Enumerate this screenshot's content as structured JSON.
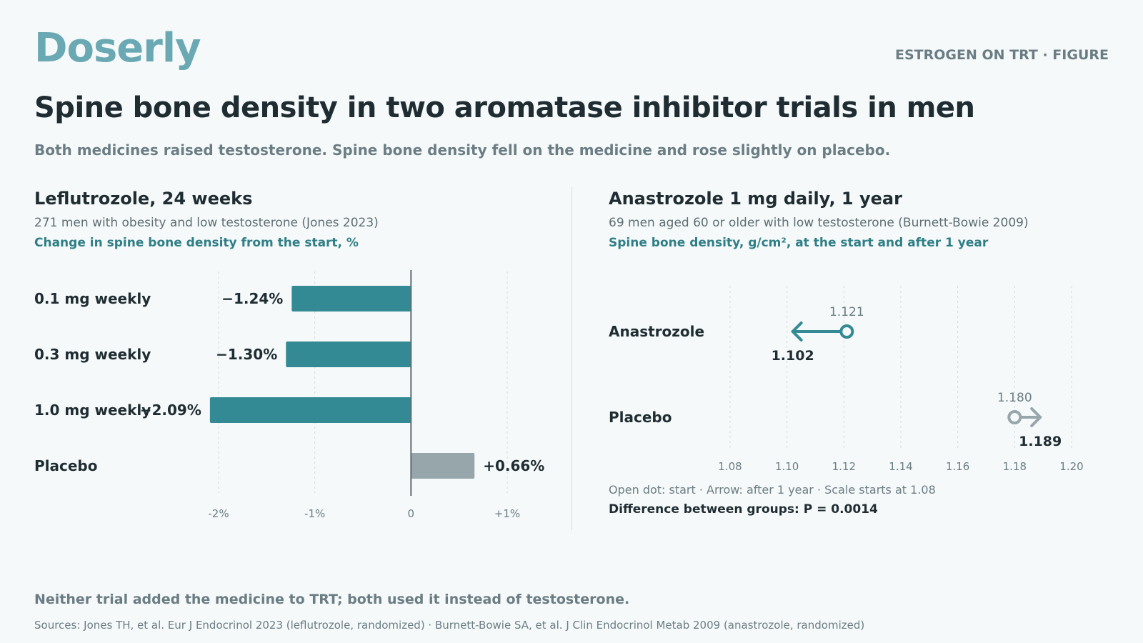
{
  "brand": {
    "logo": "Doserly",
    "tag": "ESTROGEN ON TRT · FIGURE"
  },
  "header": {
    "title": "Spine bone density in two aromatase inhibitor trials in men",
    "subtitle": "Both medicines raised testosterone. Spine bone density fell on the medicine and rose slightly on placebo."
  },
  "left_panel": {
    "title": "Leflutrozole, 24 weeks",
    "description": "271 men with obesity and low testosterone (Jones 2023)",
    "measure": "Change in spine bone density from the start, %"
  },
  "right_panel": {
    "title": "Anastrozole 1 mg daily, 1 year",
    "description": "69 men aged 60 or older with low testosterone (Burnett-Bowie 2009)",
    "measure": "Spine bone density, g/cm², at the start and after 1 year",
    "note": "Open dot: start · Arrow: after 1 year · Scale starts at 1.08",
    "pvalue": "Difference between groups: P = 0.0014"
  },
  "footer": {
    "note": "Neither trial added the medicine to TRT; both used it instead of testosterone.",
    "sources": "Sources: Jones TH, et al. Eur J Endocrinol 2023 (leflutrozole, randomized) · Burnett-Bowie SA, et al. J Clin Endocrinol Metab 2009 (anastrozole, randomized)"
  },
  "colors": {
    "drug": "#338a94",
    "placebo": "#96a6ab",
    "accent": "#2f7e86",
    "logo": "#6aa9b3"
  },
  "chart_data": [
    {
      "type": "bar",
      "orientation": "horizontal",
      "categories": [
        "0.1 mg weekly",
        "0.3 mg weekly",
        "1.0 mg weekly",
        "Placebo"
      ],
      "values": [
        -1.24,
        -1.3,
        -2.09,
        0.66
      ],
      "labels": [
        "−1.24%",
        "−1.30%",
        "−2.09%",
        "+0.66%"
      ],
      "xlim": [
        -2.0,
        1.0
      ],
      "ticks": [
        -2,
        -1,
        0,
        1
      ],
      "tick_labels": [
        "-2%",
        "-1%",
        "0",
        "+1%"
      ],
      "grid": true
    },
    {
      "type": "dumbbell",
      "categories": [
        "Anastrozole",
        "Placebo"
      ],
      "start": [
        1.121,
        1.18
      ],
      "end": [
        1.102,
        1.189
      ],
      "start_labels": [
        "1.121",
        "1.180"
      ],
      "end_labels": [
        "1.102",
        "1.189"
      ],
      "xlim": [
        1.08,
        1.2
      ],
      "ticks": [
        1.08,
        1.1,
        1.12,
        1.14,
        1.16,
        1.18,
        1.2
      ],
      "tick_labels": [
        "1.08",
        "1.10",
        "1.12",
        "1.14",
        "1.16",
        "1.18",
        "1.20"
      ],
      "grid": true
    }
  ]
}
